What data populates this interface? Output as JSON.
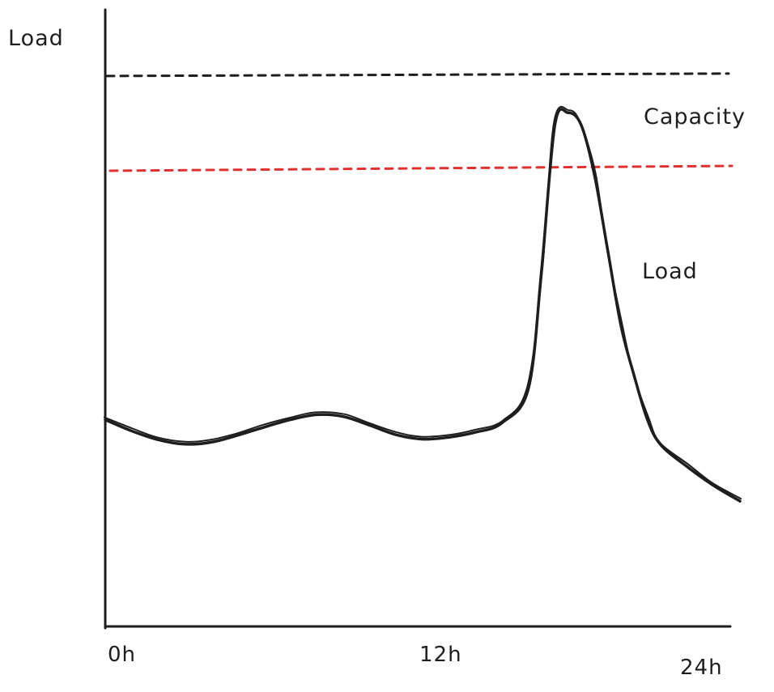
{
  "chart_data": {
    "type": "line",
    "title": "",
    "ylabel": "Load",
    "xlabel": "",
    "x_ticks": [
      "0h",
      "12h",
      "24h"
    ],
    "xlim": [
      0,
      24
    ],
    "ylim": [
      0,
      100
    ],
    "grid": false,
    "legend": "none",
    "series": [
      {
        "name": "Load",
        "color": "#1e1e1e",
        "x": [
          0,
          1,
          2,
          3,
          4,
          5,
          6,
          7,
          8,
          9,
          10,
          11,
          12,
          13,
          14,
          15,
          16,
          16.5,
          17,
          17.5,
          18,
          18.5,
          19,
          19.5,
          20,
          20.5,
          21,
          22,
          23,
          24
        ],
        "y": [
          33,
          31.2,
          29.8,
          29.1,
          29.4,
          30.5,
          31.8,
          33,
          33.8,
          33.5,
          32.1,
          30.6,
          29.9,
          30.2,
          31,
          32.5,
          38,
          57,
          80,
          82,
          80,
          72,
          60,
          48,
          40,
          33,
          29,
          25.5,
          22.5,
          20
        ]
      }
    ],
    "reference_lines": [
      {
        "name": "Capacity",
        "y": 88,
        "color": "#1e1e1e",
        "style": "dashed"
      },
      {
        "name": "",
        "y": 73,
        "color": "#e03131",
        "style": "dashed"
      }
    ],
    "annotations": [
      {
        "text": "Capacity"
      },
      {
        "text": "Load"
      }
    ]
  }
}
